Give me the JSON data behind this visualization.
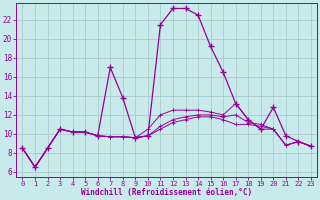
{
  "background_color": "#c8eaea",
  "grid_color": "#a8cccc",
  "line_color": "#990099",
  "xlabel": "Windchill (Refroidissement éolien,°C)",
  "x": [
    0,
    1,
    2,
    3,
    4,
    5,
    6,
    7,
    8,
    9,
    10,
    11,
    12,
    13,
    14,
    15,
    16,
    17,
    18,
    19,
    20,
    21,
    22,
    23
  ],
  "series_main": [
    8.5,
    6.5,
    8.5,
    10.5,
    10.2,
    10.2,
    9.8,
    17.0,
    13.8,
    9.6,
    9.8,
    21.5,
    23.2,
    23.2,
    22.5,
    19.2,
    16.5,
    13.2,
    11.5,
    10.5,
    12.8,
    9.8,
    9.2,
    8.7
  ],
  "series_a": [
    8.5,
    6.5,
    8.5,
    10.5,
    10.2,
    10.2,
    9.8,
    9.7,
    9.7,
    9.6,
    9.8,
    10.5,
    11.2,
    11.5,
    11.8,
    11.8,
    11.5,
    11.0,
    11.0,
    10.8,
    10.5,
    8.8,
    9.2,
    8.7
  ],
  "series_b": [
    8.5,
    6.5,
    8.5,
    10.5,
    10.2,
    10.2,
    9.8,
    9.7,
    9.7,
    9.6,
    9.8,
    10.8,
    11.5,
    11.8,
    12.0,
    12.0,
    11.8,
    12.0,
    11.2,
    11.0,
    10.5,
    8.8,
    9.2,
    8.7
  ],
  "series_c": [
    8.5,
    6.5,
    8.5,
    10.5,
    10.2,
    10.2,
    9.8,
    9.7,
    9.7,
    9.6,
    10.5,
    12.0,
    12.5,
    12.5,
    12.5,
    12.3,
    12.0,
    13.2,
    11.5,
    10.5,
    10.5,
    8.8,
    9.2,
    8.7
  ],
  "ylim": [
    5.5,
    23.8
  ],
  "xlim": [
    -0.5,
    23.5
  ],
  "yticks": [
    6,
    8,
    10,
    12,
    14,
    16,
    18,
    20,
    22
  ],
  "xticks": [
    0,
    1,
    2,
    3,
    4,
    5,
    6,
    7,
    8,
    9,
    10,
    11,
    12,
    13,
    14,
    15,
    16,
    17,
    18,
    19,
    20,
    21,
    22,
    23
  ],
  "figsize": [
    3.2,
    2.0
  ],
  "dpi": 100
}
